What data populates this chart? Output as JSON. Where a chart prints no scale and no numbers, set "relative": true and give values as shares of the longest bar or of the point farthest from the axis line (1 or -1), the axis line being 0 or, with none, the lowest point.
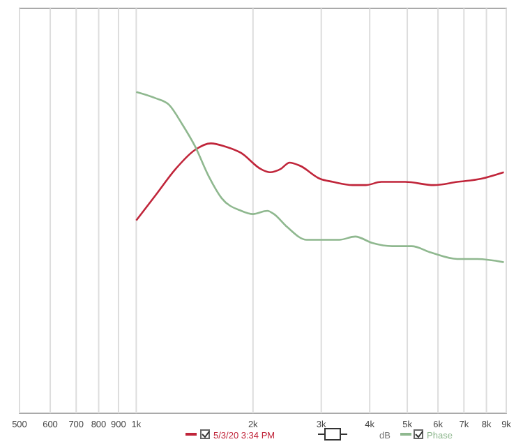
{
  "chart_data": {
    "type": "line",
    "relative": true,
    "log": "x",
    "grid": "x",
    "legend": "bottom",
    "xlim": [
      500,
      9000
    ],
    "xticks": [
      500,
      600,
      700,
      800,
      900,
      {
        "value": 1000,
        "label": "1k"
      },
      {
        "value": 2000,
        "label": "2k"
      },
      {
        "value": 3000,
        "label": "3k"
      },
      {
        "value": 4000,
        "label": "4k"
      },
      {
        "value": 5000,
        "label": "5k"
      },
      {
        "value": 6000,
        "label": "6k"
      },
      {
        "value": 7000,
        "label": "7k"
      },
      {
        "value": 8000,
        "label": "8k"
      },
      {
        "value": 9000,
        "label": "9k"
      }
    ],
    "annotations": [
      "dB"
    ],
    "series": [
      {
        "name": "5/3/20 3:34 PM",
        "color": "#c0253a",
        "x": [
          1000,
          1124,
          1263,
          1419,
          1558,
          1698,
          1865,
          2096,
          2212,
          2356,
          2486,
          2646,
          2975,
          3216,
          3613,
          3905,
          4286,
          4940,
          5850,
          6730,
          7760,
          8870
        ],
        "values": [
          0.6,
          0.68,
          0.76,
          0.82,
          0.84,
          0.83,
          0.81,
          0.76,
          0.75,
          0.76,
          0.78,
          0.77,
          0.73,
          0.72,
          0.71,
          0.71,
          0.72,
          0.72,
          0.71,
          0.72,
          0.73,
          0.75
        ]
      },
      {
        "name": "Phase",
        "color": "#8fb88f",
        "x": [
          1000,
          1124,
          1215,
          1313,
          1419,
          1534,
          1659,
          1865,
          2000,
          2178,
          2265,
          2449,
          2750,
          3093,
          3343,
          3670,
          4060,
          4570,
          5130,
          5760,
          6730,
          7580,
          8870
        ],
        "values": [
          1.0,
          0.98,
          0.96,
          0.9,
          0.83,
          0.74,
          0.67,
          0.63,
          0.62,
          0.63,
          0.62,
          0.58,
          0.54,
          0.54,
          0.54,
          0.55,
          0.53,
          0.52,
          0.52,
          0.5,
          0.48,
          0.48,
          0.47
        ]
      }
    ]
  }
}
